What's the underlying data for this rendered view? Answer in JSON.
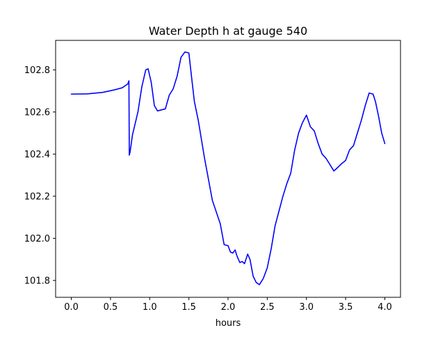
{
  "chart_data": {
    "type": "line",
    "title": "Water Depth h at gauge 540",
    "xlabel": "hours",
    "ylabel": "",
    "xlim": [
      -0.2,
      4.2
    ],
    "ylim": [
      101.72,
      102.94
    ],
    "x_ticks": [
      0.0,
      0.5,
      1.0,
      1.5,
      2.0,
      2.5,
      3.0,
      3.5,
      4.0
    ],
    "x_tick_labels": [
      "0.0",
      "0.5",
      "1.0",
      "1.5",
      "2.0",
      "2.5",
      "3.0",
      "3.5",
      "4.0"
    ],
    "y_ticks": [
      101.8,
      102.0,
      102.2,
      102.4,
      102.6,
      102.8
    ],
    "y_tick_labels": [
      "101.8",
      "102.0",
      "102.2",
      "102.4",
      "102.6",
      "102.8"
    ],
    "grid": false,
    "colors": {
      "line": "#0000ff",
      "axes": "#000000",
      "background": "#ffffff"
    },
    "series": [
      {
        "name": "",
        "x": [
          0.0,
          0.2,
          0.4,
          0.55,
          0.65,
          0.72,
          0.735,
          0.74,
          0.75,
          0.78,
          0.85,
          0.9,
          0.95,
          0.98,
          1.02,
          1.06,
          1.1,
          1.15,
          1.2,
          1.25,
          1.3,
          1.35,
          1.4,
          1.45,
          1.5,
          1.53,
          1.57,
          1.62,
          1.7,
          1.8,
          1.9,
          1.95,
          2.0,
          2.03,
          2.06,
          2.09,
          2.11,
          2.15,
          2.18,
          2.21,
          2.25,
          2.28,
          2.32,
          2.36,
          2.4,
          2.45,
          2.5,
          2.55,
          2.6,
          2.65,
          2.7,
          2.75,
          2.8,
          2.85,
          2.9,
          2.95,
          3.0,
          3.05,
          3.1,
          3.15,
          3.2,
          3.25,
          3.3,
          3.35,
          3.38,
          3.45,
          3.5,
          3.55,
          3.6,
          3.65,
          3.7,
          3.75,
          3.8,
          3.85,
          3.88,
          3.92,
          3.96,
          4.0
        ],
        "y": [
          102.685,
          102.686,
          102.693,
          102.705,
          102.715,
          102.733,
          102.748,
          102.395,
          102.41,
          102.49,
          102.6,
          102.72,
          102.8,
          102.805,
          102.74,
          102.63,
          102.605,
          102.61,
          102.615,
          102.68,
          102.71,
          102.77,
          102.86,
          102.885,
          102.88,
          102.78,
          102.65,
          102.56,
          102.38,
          102.18,
          102.07,
          101.97,
          101.965,
          101.935,
          101.93,
          101.945,
          101.92,
          101.885,
          101.89,
          101.88,
          101.925,
          101.9,
          101.82,
          101.79,
          101.78,
          101.81,
          101.86,
          101.95,
          102.06,
          102.13,
          102.2,
          102.26,
          102.31,
          102.42,
          102.5,
          102.55,
          102.585,
          102.53,
          102.51,
          102.45,
          102.4,
          102.38,
          102.35,
          102.32,
          102.33,
          102.355,
          102.37,
          102.42,
          102.44,
          102.5,
          102.56,
          102.63,
          102.69,
          102.685,
          102.65,
          102.58,
          102.5,
          102.45
        ]
      }
    ]
  }
}
